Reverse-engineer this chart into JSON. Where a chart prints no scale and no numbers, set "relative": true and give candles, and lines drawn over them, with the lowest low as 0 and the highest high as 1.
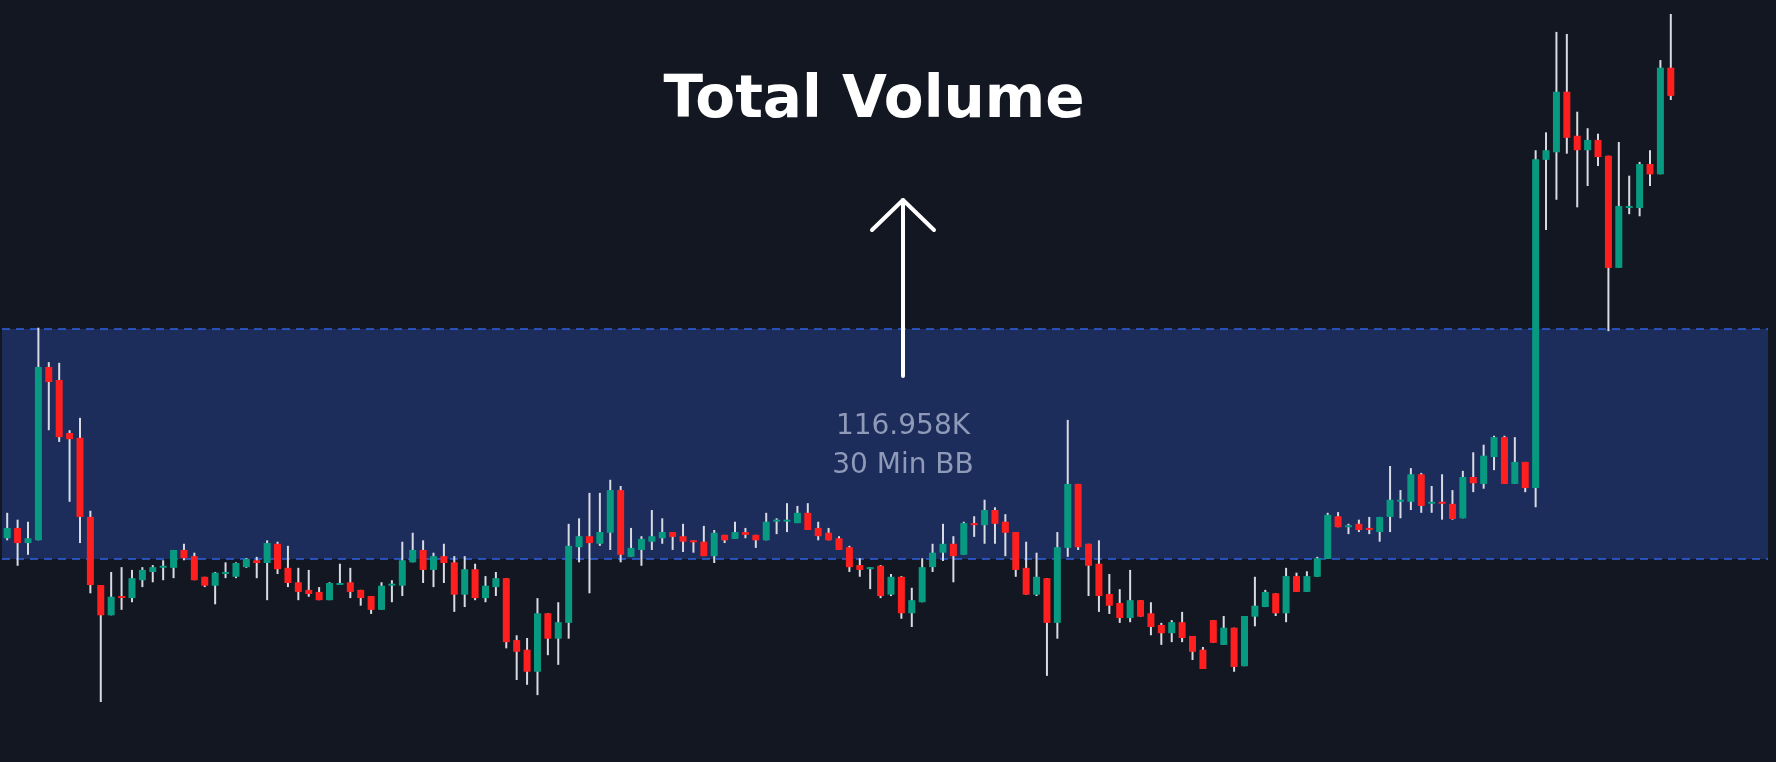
{
  "chart_data": {
    "type": "candlestick",
    "title": "Total Volume",
    "relative": true,
    "tick_labels": false,
    "grid": false,
    "legend": false,
    "annotations": [
      "116.958K",
      "30 Min BB"
    ],
    "bands": [
      {
        "axis": "y",
        "from": 0.208,
        "to": 0.542,
        "color": "#1c2c5b"
      }
    ],
    "ref_lines": [
      {
        "axis": "y",
        "value": 0.542,
        "color": "#2f62e0",
        "line_style": "dashed"
      },
      {
        "axis": "y",
        "value": 0.208,
        "color": "#2f62e0",
        "line_style": "dashed"
      }
    ],
    "categories": [
      null,
      null,
      null,
      null,
      null,
      null,
      null,
      null,
      null,
      null,
      null,
      null,
      null,
      null,
      null,
      null,
      null,
      null,
      null,
      null,
      null,
      null,
      null,
      null,
      null,
      null,
      null,
      null,
      null,
      null,
      null,
      null,
      null,
      null,
      null,
      null,
      null,
      null,
      null,
      null,
      null,
      null,
      null,
      null,
      null,
      null,
      null,
      null,
      null,
      null,
      null,
      null,
      null,
      null,
      null,
      null,
      null,
      null,
      null,
      null,
      null,
      null,
      null,
      null,
      null,
      null,
      null,
      null,
      null,
      null,
      null,
      null,
      null,
      null,
      null,
      null,
      null,
      null,
      null,
      null,
      null,
      null,
      null,
      null,
      null,
      null,
      null,
      null,
      null,
      null,
      null,
      null,
      null,
      null,
      null,
      null,
      null,
      null,
      null,
      null,
      null,
      null,
      null,
      null,
      null,
      null,
      null,
      null,
      null,
      null,
      null,
      null,
      null,
      null,
      null,
      null,
      null,
      null,
      null,
      null,
      null,
      null,
      null,
      null,
      null,
      null,
      null,
      null,
      null,
      null,
      null,
      null,
      null,
      null,
      null,
      null,
      null,
      null,
      null,
      null,
      null,
      null,
      null,
      null,
      null,
      null,
      null,
      null,
      null,
      null,
      null,
      null,
      null,
      null,
      null,
      null,
      null,
      null,
      null,
      null,
      null
    ],
    "ohlc": [
      [
        0.238,
        0.275,
        0.235,
        0.253
      ],
      [
        0.253,
        0.265,
        0.198,
        0.231
      ],
      [
        0.231,
        0.262,
        0.214,
        0.238
      ],
      [
        0.235,
        0.544,
        0.235,
        0.487
      ],
      [
        0.487,
        0.494,
        0.395,
        0.465
      ],
      [
        0.468,
        0.493,
        0.378,
        0.385
      ],
      [
        0.391,
        0.395,
        0.291,
        0.382
      ],
      [
        0.384,
        0.413,
        0.231,
        0.269
      ],
      [
        0.269,
        0.278,
        0.158,
        0.17
      ],
      [
        0.17,
        0.17,
        0,
        0.126
      ],
      [
        0.126,
        0.189,
        0.126,
        0.153
      ],
      [
        0.154,
        0.196,
        0.134,
        0.153
      ],
      [
        0.151,
        0.192,
        0.145,
        0.18
      ],
      [
        0.177,
        0.196,
        0.167,
        0.192
      ],
      [
        0.189,
        0.199,
        0.174,
        0.196
      ],
      [
        0.196,
        0.206,
        0.177,
        0.198
      ],
      [
        0.195,
        0.221,
        0.18,
        0.221
      ],
      [
        0.221,
        0.23,
        0.206,
        0.209
      ],
      [
        0.212,
        0.217,
        0.177,
        0.177
      ],
      [
        0.182,
        0.182,
        0.167,
        0.169
      ],
      [
        0.169,
        0.189,
        0.142,
        0.188
      ],
      [
        0.188,
        0.203,
        0.18,
        0.189
      ],
      [
        0.182,
        0.203,
        0.18,
        0.202
      ],
      [
        0.196,
        0.209,
        0.195,
        0.208
      ],
      [
        0.206,
        0.211,
        0.18,
        0.202
      ],
      [
        0.202,
        0.235,
        0.148,
        0.231
      ],
      [
        0.23,
        0.233,
        0.186,
        0.193
      ],
      [
        0.195,
        0.227,
        0.167,
        0.173
      ],
      [
        0.174,
        0.195,
        0.148,
        0.16
      ],
      [
        0.163,
        0.192,
        0.153,
        0.157
      ],
      [
        0.16,
        0.167,
        0.148,
        0.148
      ],
      [
        0.148,
        0.174,
        0.148,
        0.173
      ],
      [
        0.172,
        0.201,
        0.172,
        0.173
      ],
      [
        0.174,
        0.195,
        0.151,
        0.16
      ],
      [
        0.163,
        0.163,
        0.14,
        0.151
      ],
      [
        0.154,
        0.154,
        0.128,
        0.134
      ],
      [
        0.134,
        0.174,
        0.134,
        0.169
      ],
      [
        0.17,
        0.177,
        0.145,
        0.172
      ],
      [
        0.169,
        0.233,
        0.154,
        0.206
      ],
      [
        0.203,
        0.246,
        0.203,
        0.221
      ],
      [
        0.221,
        0.235,
        0.173,
        0.192
      ],
      [
        0.192,
        0.217,
        0.167,
        0.212
      ],
      [
        0.212,
        0.23,
        0.173,
        0.202
      ],
      [
        0.203,
        0.212,
        0.131,
        0.156
      ],
      [
        0.156,
        0.212,
        0.138,
        0.193
      ],
      [
        0.193,
        0.201,
        0.148,
        0.151
      ],
      [
        0.151,
        0.183,
        0.145,
        0.169
      ],
      [
        0.167,
        0.189,
        0.154,
        0.18
      ],
      [
        0.18,
        0.18,
        0.078,
        0.087
      ],
      [
        0.09,
        0.097,
        0.032,
        0.073
      ],
      [
        0.076,
        0.093,
        0.025,
        0.044
      ],
      [
        0.044,
        0.151,
        0.01,
        0.129
      ],
      [
        0.129,
        0.129,
        0.068,
        0.092
      ],
      [
        0.092,
        0.145,
        0.054,
        0.116
      ],
      [
        0.115,
        0.259,
        0.092,
        0.227
      ],
      [
        0.225,
        0.267,
        0.203,
        0.241
      ],
      [
        0.241,
        0.304,
        0.158,
        0.231
      ],
      [
        0.23,
        0.304,
        0.227,
        0.247
      ],
      [
        0.246,
        0.323,
        0.221,
        0.308
      ],
      [
        0.308,
        0.314,
        0.203,
        0.214
      ],
      [
        0.211,
        0.253,
        0.211,
        0.224
      ],
      [
        0.221,
        0.241,
        0.198,
        0.237
      ],
      [
        0.233,
        0.279,
        0.221,
        0.241
      ],
      [
        0.238,
        0.267,
        0.23,
        0.247
      ],
      [
        0.247,
        0.247,
        0.221,
        0.24
      ],
      [
        0.241,
        0.259,
        0.218,
        0.233
      ],
      [
        0.235,
        0.235,
        0.217,
        0.233
      ],
      [
        0.233,
        0.256,
        0.212,
        0.212
      ],
      [
        0.212,
        0.25,
        0.202,
        0.246
      ],
      [
        0.243,
        0.243,
        0.231,
        0.235
      ],
      [
        0.237,
        0.262,
        0.237,
        0.247
      ],
      [
        0.247,
        0.253,
        0.238,
        0.243
      ],
      [
        0.243,
        0.243,
        0.224,
        0.235
      ],
      [
        0.235,
        0.275,
        0.235,
        0.262
      ],
      [
        0.263,
        0.267,
        0.244,
        0.265
      ],
      [
        0.263,
        0.289,
        0.247,
        0.265
      ],
      [
        0.26,
        0.285,
        0.26,
        0.275
      ],
      [
        0.275,
        0.289,
        0.25,
        0.25
      ],
      [
        0.253,
        0.262,
        0.235,
        0.241
      ],
      [
        0.246,
        0.253,
        0.235,
        0.235
      ],
      [
        0.238,
        0.241,
        0.221,
        0.221
      ],
      [
        0.225,
        0.227,
        0.189,
        0.196
      ],
      [
        0.199,
        0.209,
        0.182,
        0.192
      ],
      [
        0.195,
        0.196,
        0.164,
        0.196
      ],
      [
        0.198,
        0.199,
        0.151,
        0.154
      ],
      [
        0.156,
        0.186,
        0.154,
        0.182
      ],
      [
        0.182,
        0.183,
        0.121,
        0.129
      ],
      [
        0.129,
        0.166,
        0.109,
        0.148
      ],
      [
        0.145,
        0.209,
        0.145,
        0.196
      ],
      [
        0.196,
        0.23,
        0.189,
        0.217
      ],
      [
        0.217,
        0.259,
        0.205,
        0.23
      ],
      [
        0.23,
        0.241,
        0.174,
        0.212
      ],
      [
        0.214,
        0.262,
        0.214,
        0.26
      ],
      [
        0.26,
        0.27,
        0.24,
        0.257
      ],
      [
        0.257,
        0.294,
        0.23,
        0.279
      ],
      [
        0.279,
        0.283,
        0.23,
        0.259
      ],
      [
        0.262,
        0.273,
        0.212,
        0.246
      ],
      [
        0.247,
        0.247,
        0.182,
        0.192
      ],
      [
        0.195,
        0.233,
        0.156,
        0.156
      ],
      [
        0.156,
        0.217,
        0.154,
        0.182
      ],
      [
        0.18,
        0.18,
        0.038,
        0.115
      ],
      [
        0.115,
        0.247,
        0.092,
        0.225
      ],
      [
        0.224,
        0.41,
        0.211,
        0.317
      ],
      [
        0.317,
        0.317,
        0.221,
        0.225
      ],
      [
        0.23,
        0.23,
        0.154,
        0.198
      ],
      [
        0.201,
        0.235,
        0.131,
        0.154
      ],
      [
        0.157,
        0.186,
        0.128,
        0.14
      ],
      [
        0.144,
        0.164,
        0.115,
        0.122
      ],
      [
        0.122,
        0.192,
        0.116,
        0.148
      ],
      [
        0.148,
        0.148,
        0.124,
        0.124
      ],
      [
        0.129,
        0.145,
        0.097,
        0.109
      ],
      [
        0.112,
        0.115,
        0.083,
        0.1
      ],
      [
        0.1,
        0.119,
        0.087,
        0.116
      ],
      [
        0.116,
        0.131,
        0.087,
        0.093
      ],
      [
        0.096,
        0.096,
        0.061,
        0.073
      ],
      [
        0.076,
        0.08,
        0.048,
        0.048
      ],
      [
        0.119,
        0.119,
        0.086,
        0.086
      ],
      [
        0.083,
        0.125,
        0.083,
        0.108
      ],
      [
        0.108,
        0.108,
        0.044,
        0.051
      ],
      [
        0.052,
        0.125,
        0.052,
        0.125
      ],
      [
        0.124,
        0.182,
        0.11,
        0.14
      ],
      [
        0.138,
        0.163,
        0.138,
        0.16
      ],
      [
        0.158,
        0.158,
        0.125,
        0.129
      ],
      [
        0.129,
        0.195,
        0.116,
        0.183
      ],
      [
        0.183,
        0.188,
        0.16,
        0.16
      ],
      [
        0.16,
        0.19,
        0.16,
        0.183
      ],
      [
        0.182,
        0.211,
        0.182,
        0.209
      ],
      [
        0.208,
        0.275,
        0.208,
        0.272
      ],
      [
        0.27,
        0.276,
        0.254,
        0.254
      ],
      [
        0.254,
        0.259,
        0.244,
        0.257
      ],
      [
        0.259,
        0.265,
        0.247,
        0.25
      ],
      [
        0.253,
        0.269,
        0.244,
        0.251
      ],
      [
        0.247,
        0.269,
        0.233,
        0.269
      ],
      [
        0.269,
        0.343,
        0.247,
        0.294
      ],
      [
        0.292,
        0.308,
        0.267,
        0.294
      ],
      [
        0.291,
        0.34,
        0.279,
        0.331
      ],
      [
        0.331,
        0.333,
        0.275,
        0.285
      ],
      [
        0.289,
        0.314,
        0.275,
        0.291
      ],
      [
        0.291,
        0.331,
        0.265,
        0.289
      ],
      [
        0.288,
        0.308,
        0.265,
        0.266
      ],
      [
        0.267,
        0.336,
        0.267,
        0.327
      ],
      [
        0.327,
        0.363,
        0.305,
        0.318
      ],
      [
        0.317,
        0.374,
        0.31,
        0.358
      ],
      [
        0.356,
        0.387,
        0.337,
        0.385
      ],
      [
        0.385,
        0.387,
        0.317,
        0.317
      ],
      [
        0.317,
        0.385,
        0.317,
        0.349
      ],
      [
        0.349,
        0.349,
        0.305,
        0.311
      ],
      [
        0.311,
        0.802,
        0.283,
        0.789
      ],
      [
        0.788,
        0.828,
        0.686,
        0.802
      ],
      [
        0.799,
        0.974,
        0.73,
        0.887
      ],
      [
        0.887,
        0.971,
        0.797,
        0.82
      ],
      [
        0.823,
        0.858,
        0.719,
        0.802
      ],
      [
        0.802,
        0.834,
        0.75,
        0.817
      ],
      [
        0.817,
        0.826,
        0.779,
        0.792
      ],
      [
        0.794,
        0.794,
        0.539,
        0.631
      ],
      [
        0.631,
        0.814,
        0.631,
        0.721
      ],
      [
        0.719,
        0.765,
        0.709,
        0.721
      ],
      [
        0.718,
        0.785,
        0.706,
        0.782
      ],
      [
        0.782,
        0.802,
        0.75,
        0.767
      ],
      [
        0.767,
        0.933,
        0.767,
        0.922
      ],
      [
        0.922,
        1,
        0.875,
        0.881
      ]
    ]
  }
}
